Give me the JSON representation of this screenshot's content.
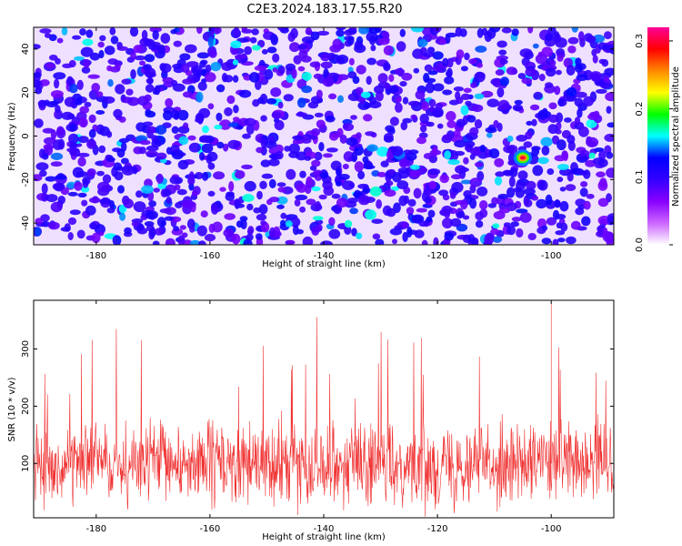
{
  "title": "C2E3.2024.183.17.55.R20",
  "chart_data": [
    {
      "type": "heatmap",
      "xlabel": "Height of straight line (km)",
      "ylabel": "Frequency (Hz)",
      "xlim": [
        -191,
        -89
      ],
      "ylim": [
        -50,
        50
      ],
      "x_ticks": [
        -180,
        -160,
        -140,
        -120,
        -100
      ],
      "y_ticks": [
        -40,
        -20,
        0,
        20,
        40
      ],
      "colorbar": {
        "label": "Normalized spectral amplitude",
        "range": [
          0.0,
          0.32
        ],
        "ticks": [
          0.0,
          0.1,
          0.2,
          0.3
        ],
        "colors": [
          "#ffffff",
          "#cc66ff",
          "#8800ff",
          "#3300ff",
          "#0000ff",
          "#00ffff",
          "#00ff00",
          "#ffff00",
          "#ff8800",
          "#ff0000",
          "#ff0099"
        ]
      },
      "background_color": "#efe0ff",
      "hotspot": {
        "x": -105,
        "y": -10,
        "value": 0.3
      },
      "grid": false
    },
    {
      "type": "line",
      "xlabel": "Height of straight line (km)",
      "ylabel": "SNR (10 * v/v)",
      "xlim": [
        -191,
        -89
      ],
      "ylim": [
        5,
        385
      ],
      "x_ticks": [
        -180,
        -160,
        -140,
        -120,
        -100
      ],
      "y_ticks": [
        100,
        200,
        300
      ],
      "series_color": "#f03030",
      "baseline": 100,
      "peak": {
        "x": -100,
        "y": 385
      },
      "grid": false
    }
  ]
}
